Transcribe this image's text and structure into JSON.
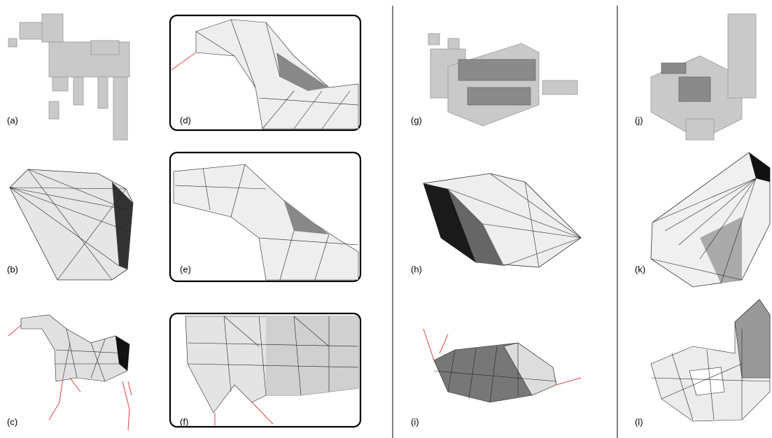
{
  "panels": [
    {
      "label": "(a)"
    },
    {
      "label": "(b)"
    },
    {
      "label": "(c)"
    },
    {
      "label": "(d)"
    },
    {
      "label": "(e)"
    },
    {
      "label": "(f)"
    },
    {
      "label": "(g)"
    },
    {
      "label": "(h)"
    },
    {
      "label": "(i)"
    },
    {
      "label": "(j)"
    },
    {
      "label": "(k)"
    },
    {
      "label": "(l)"
    }
  ]
}
